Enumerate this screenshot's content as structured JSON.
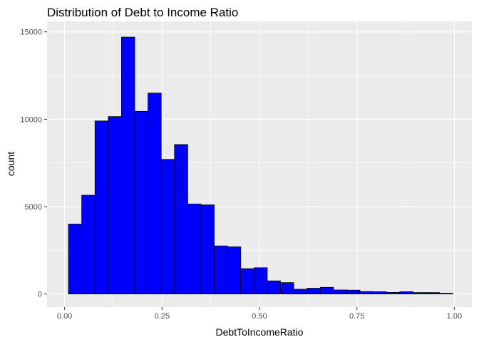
{
  "chart_data": {
    "type": "bar",
    "histogram": true,
    "title": "Distribution of Debt to Income Ratio",
    "xlabel": "DebtToIncomeRatio",
    "ylabel": "count",
    "xlim": [
      -0.045,
      1.045
    ],
    "ylim": [
      -750,
      15600
    ],
    "xticks": [
      0.0,
      0.25,
      0.5,
      0.75,
      1.0
    ],
    "xtick_labels": [
      "0.00",
      "0.25",
      "0.50",
      "0.75",
      "1.00"
    ],
    "yticks": [
      0,
      5000,
      10000,
      15000
    ],
    "ytick_labels": [
      "0",
      "5000",
      "10000",
      "15000"
    ],
    "grid": true,
    "bar_fill": "#0000ff",
    "bar_stroke": "#000000",
    "panel_background": "#ebebeb",
    "gridline_color": "#ffffff",
    "bins": [
      {
        "x0": 0.01,
        "x1": 0.044,
        "count": 4000
      },
      {
        "x0": 0.044,
        "x1": 0.078,
        "count": 5650
      },
      {
        "x0": 0.078,
        "x1": 0.112,
        "count": 9900
      },
      {
        "x0": 0.112,
        "x1": 0.146,
        "count": 10150
      },
      {
        "x0": 0.146,
        "x1": 0.18,
        "count": 14700
      },
      {
        "x0": 0.18,
        "x1": 0.214,
        "count": 10450
      },
      {
        "x0": 0.214,
        "x1": 0.248,
        "count": 11500
      },
      {
        "x0": 0.248,
        "x1": 0.282,
        "count": 7700
      },
      {
        "x0": 0.282,
        "x1": 0.316,
        "count": 8550
      },
      {
        "x0": 0.316,
        "x1": 0.35,
        "count": 5150
      },
      {
        "x0": 0.35,
        "x1": 0.384,
        "count": 5100
      },
      {
        "x0": 0.384,
        "x1": 0.418,
        "count": 2750
      },
      {
        "x0": 0.418,
        "x1": 0.452,
        "count": 2700
      },
      {
        "x0": 0.452,
        "x1": 0.486,
        "count": 1450
      },
      {
        "x0": 0.486,
        "x1": 0.52,
        "count": 1500
      },
      {
        "x0": 0.52,
        "x1": 0.554,
        "count": 750
      },
      {
        "x0": 0.554,
        "x1": 0.588,
        "count": 650
      },
      {
        "x0": 0.588,
        "x1": 0.622,
        "count": 270
      },
      {
        "x0": 0.622,
        "x1": 0.656,
        "count": 330
      },
      {
        "x0": 0.656,
        "x1": 0.69,
        "count": 380
      },
      {
        "x0": 0.69,
        "x1": 0.724,
        "count": 230
      },
      {
        "x0": 0.724,
        "x1": 0.758,
        "count": 220
      },
      {
        "x0": 0.758,
        "x1": 0.792,
        "count": 140
      },
      {
        "x0": 0.792,
        "x1": 0.826,
        "count": 130
      },
      {
        "x0": 0.826,
        "x1": 0.86,
        "count": 90
      },
      {
        "x0": 0.86,
        "x1": 0.894,
        "count": 130
      },
      {
        "x0": 0.894,
        "x1": 0.928,
        "count": 80
      },
      {
        "x0": 0.928,
        "x1": 0.962,
        "count": 80
      },
      {
        "x0": 0.962,
        "x1": 0.996,
        "count": 40
      }
    ]
  }
}
